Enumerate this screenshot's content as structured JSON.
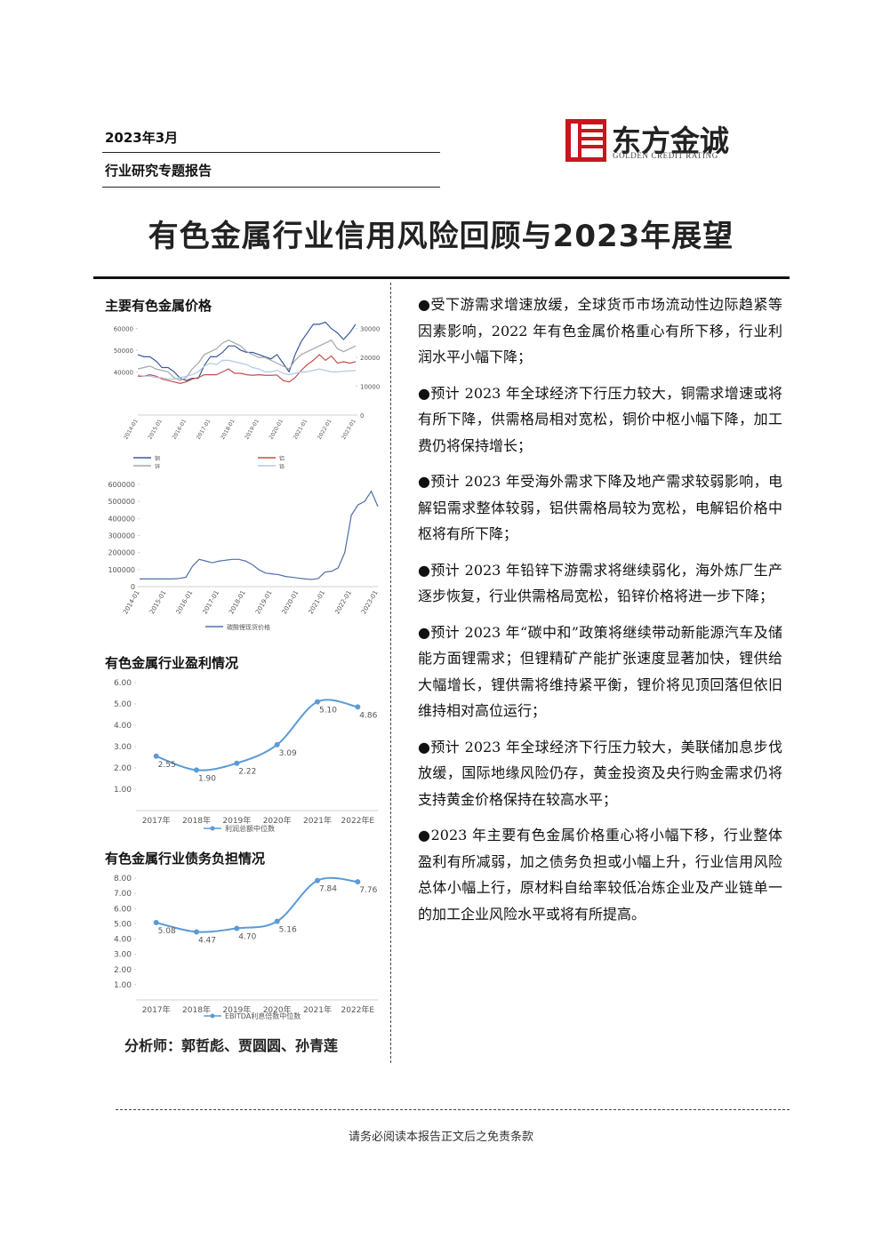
{
  "header": {
    "date": "2023年3月",
    "category": "行业研究专题报告",
    "logo_name": "东方金诚",
    "logo_en": "GOLDEN CREDIT RATING"
  },
  "title": "有色金属行业信用风险回顾与2023年展望",
  "charts": [
    {
      "type": "line",
      "title": "主要有色金属价格",
      "categories": [
        "2014-01",
        null,
        null,
        null,
        "2015-01",
        null,
        null,
        null,
        "2016-01",
        null,
        null,
        null,
        "2017-01",
        null,
        null,
        null,
        "2018-01",
        null,
        null,
        null,
        "2019-01",
        null,
        null,
        null,
        "2020-01",
        null,
        null,
        null,
        "2021-01",
        null,
        null,
        null,
        "2022-01",
        null,
        null,
        null,
        "2023-01"
      ],
      "ylim": [
        20000,
        64000
      ],
      "yticks": [
        40000,
        50000,
        60000
      ],
      "y2lim": [
        0,
        33000
      ],
      "y2ticks": [
        0,
        10000,
        20000,
        30000
      ],
      "series": [
        {
          "name": "铜",
          "color": "#3a5a9a",
          "axis": "y",
          "values": [
            48000,
            47000,
            47000,
            45000,
            42000,
            42000,
            40000,
            37000,
            36000,
            37000,
            37000,
            43000,
            47000,
            47000,
            49000,
            52000,
            52000,
            50000,
            49000,
            49000,
            48000,
            47000,
            46000,
            48000,
            44000,
            40000,
            48000,
            54000,
            58000,
            62000,
            62000,
            63000,
            60000,
            58000,
            55000,
            58000,
            62000
          ]
        },
        {
          "name": "铝",
          "color": "#c0504d",
          "axis": "y2",
          "values": [
            13500,
            13500,
            14000,
            13500,
            12500,
            12000,
            11500,
            11000,
            11500,
            12500,
            13000,
            14000,
            14000,
            14000,
            15000,
            16000,
            14500,
            14500,
            14000,
            13800,
            14000,
            13800,
            13800,
            13900,
            12000,
            11500,
            13000,
            15500,
            17500,
            19000,
            21000,
            19000,
            20500,
            18000,
            18500,
            18000,
            18500
          ]
        },
        {
          "name": "锌",
          "color": "#a6a6a6",
          "axis": "y2",
          "values": [
            16000,
            16500,
            17000,
            16000,
            15500,
            15000,
            13000,
            12000,
            13000,
            16000,
            18000,
            21000,
            22000,
            23000,
            25000,
            26000,
            25000,
            24000,
            22000,
            21000,
            20000,
            20000,
            19000,
            18000,
            17000,
            16000,
            19000,
            21000,
            22000,
            23000,
            24000,
            25000,
            26000,
            23000,
            22000,
            23000,
            24000
          ]
        },
        {
          "name": "铅",
          "color": "#b4c7e7",
          "axis": "y2",
          "values": [
            14000,
            13500,
            13500,
            13000,
            13000,
            12500,
            12500,
            13000,
            13500,
            14000,
            15000,
            17000,
            18000,
            17500,
            19000,
            19000,
            18500,
            18000,
            17500,
            16500,
            16000,
            15000,
            15000,
            15500,
            14500,
            14000,
            14500,
            15000,
            15000,
            15500,
            16000,
            15500,
            15000,
            15000,
            15200,
            15300,
            15500
          ]
        }
      ]
    },
    {
      "type": "line",
      "categories": [
        "2014-01",
        null,
        null,
        null,
        "2015-01",
        null,
        null,
        null,
        "2016-01",
        null,
        null,
        null,
        "2017-01",
        null,
        null,
        null,
        "2018-01",
        null,
        null,
        null,
        "2019-01",
        null,
        null,
        null,
        "2020-01",
        null,
        null,
        null,
        "2021-01",
        null,
        null,
        null,
        "2022-01",
        null,
        null,
        null,
        "2023-01"
      ],
      "ylim": [
        0,
        600000
      ],
      "yticks": [
        0,
        100000,
        200000,
        300000,
        400000,
        500000,
        600000
      ],
      "series": [
        {
          "name": "碳酸锂现货价格",
          "color": "#4f6fa8",
          "values": [
            45000,
            45000,
            45000,
            45000,
            45000,
            45000,
            48000,
            55000,
            120000,
            160000,
            150000,
            140000,
            150000,
            155000,
            160000,
            160000,
            150000,
            130000,
            100000,
            80000,
            75000,
            70000,
            60000,
            55000,
            50000,
            45000,
            42000,
            48000,
            85000,
            90000,
            110000,
            200000,
            420000,
            480000,
            500000,
            560000,
            470000
          ]
        }
      ]
    },
    {
      "type": "line",
      "title": "有色金属行业盈利情况",
      "smooth": true,
      "categories": [
        "2017年",
        "2018年",
        "2019年",
        "2020年",
        "2021年",
        "2022年E"
      ],
      "ylim": [
        0,
        6
      ],
      "yticks": [
        {
          "value": 1,
          "label": "1.00"
        },
        {
          "value": 2,
          "label": "2.00"
        },
        {
          "value": 3,
          "label": "3.00"
        },
        {
          "value": 4,
          "label": "4.00"
        },
        {
          "value": 5,
          "label": "5.00"
        },
        {
          "value": 6,
          "label": "6.00"
        }
      ],
      "series": [
        {
          "name": "利润总额中位数",
          "color": "#5b9bd5",
          "values": [
            2.55,
            1.9,
            2.22,
            3.09,
            5.1,
            4.86
          ],
          "value_labels": [
            "2.55",
            "1.90",
            "2.22",
            "3.09",
            "5.10",
            "4.86"
          ]
        }
      ]
    },
    {
      "type": "line",
      "title": "有色金属行业债务负担情况",
      "smooth": true,
      "categories": [
        "2017年",
        "2018年",
        "2019年",
        "2020年",
        "2021年",
        "2022年E"
      ],
      "ylim": [
        0,
        8
      ],
      "yticks": [
        {
          "value": 1,
          "label": "1.00"
        },
        {
          "value": 2,
          "label": "2.00"
        },
        {
          "value": 3,
          "label": "3.00"
        },
        {
          "value": 4,
          "label": "4.00"
        },
        {
          "value": 5,
          "label": "5.00"
        },
        {
          "value": 6,
          "label": "6.00"
        },
        {
          "value": 7,
          "label": "7.00"
        },
        {
          "value": 8,
          "label": "8.00"
        }
      ],
      "series": [
        {
          "name": "EBITDA利息倍数中位数",
          "color": "#5b9bd5",
          "values": [
            5.08,
            4.47,
            4.7,
            5.16,
            7.84,
            7.76
          ],
          "value_labels": [
            "5.08",
            "4.47",
            "4.70",
            "5.16",
            "7.84",
            "7.76"
          ]
        }
      ]
    }
  ],
  "analysts": "分析师：郭哲彪、贾圆圆、孙青莲",
  "bullets": [
    "●受下游需求增速放缓，全球货币市场流动性边际趋紧等因素影响，2022 年有色金属价格重心有所下移，行业利润水平小幅下降；",
    "●预计 2023 年全球经济下行压力较大，铜需求增速或将有所下降，供需格局相对宽松，铜价中枢小幅下降，加工费仍将保持增长；",
    "●预计 2023 年受海外需求下降及地产需求较弱影响，电解铝需求整体较弱，铝供需格局较为宽松，电解铝价格中枢将有所下降；",
    "●预计 2023 年铅锌下游需求将继续弱化，海外炼厂生产逐步恢复，行业供需格局宽松，铅锌价格将进一步下降；",
    "●预计 2023 年“碳中和”政策将继续带动新能源汽车及储能方面锂需求；但锂精矿产能扩张速度显著加快，锂供给大幅增长，锂供需将维持紧平衡，锂价将见顶回落但依旧维持相对高位运行；",
    "●预计 2023 年全球经济下行压力较大，美联储加息步伐放缓，国际地缘风险仍存，黄金投资及央行购金需求仍将支持黄金价格保持在较高水平；",
    "●2023 年主要有色金属价格重心将小幅下移，行业整体盈利有所减弱，加之债务负担或小幅上升，行业信用风险总体小幅上行，原材料自给率较低冶炼企业及产业链单一的加工企业风险水平或将有所提高。"
  ],
  "footer": "请务必阅读本报告正文后之免责条款"
}
